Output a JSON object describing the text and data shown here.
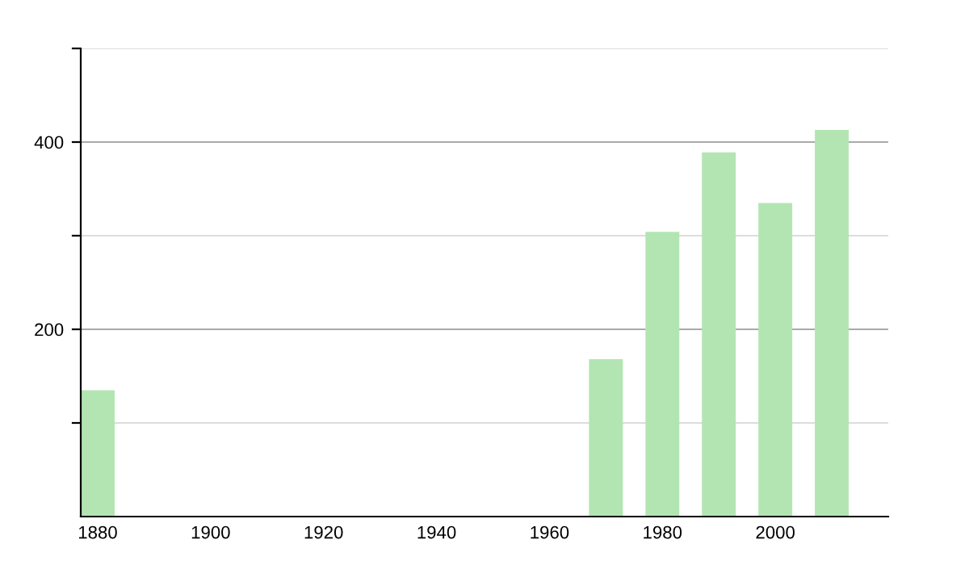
{
  "chart_data": {
    "type": "bar",
    "x": [
      1880,
      1970,
      1980,
      1990,
      2000,
      2010
    ],
    "values": [
      135,
      168,
      304,
      389,
      335,
      413
    ],
    "color": "#b3e5b3",
    "xlim": [
      1877,
      2020
    ],
    "xticks": [
      1880,
      1900,
      1920,
      1940,
      1960,
      1980,
      2000
    ],
    "ylim": [
      0,
      500
    ],
    "yticks": [
      {
        "value": 100,
        "label": null
      },
      200,
      {
        "value": 300,
        "label": null
      },
      400,
      {
        "value": 500,
        "label": null
      }
    ],
    "grid": "y"
  }
}
